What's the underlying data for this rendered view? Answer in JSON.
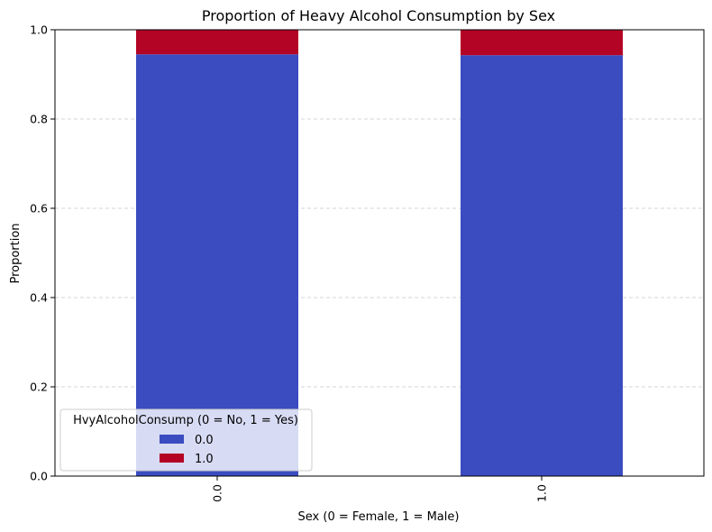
{
  "chart_data": {
    "type": "bar",
    "stacked": true,
    "title": "Proportion of Heavy Alcohol Consumption by Sex",
    "xlabel": "Sex (0 = Female, 1 = Male)",
    "ylabel": "Proportion",
    "categories": [
      "0.0",
      "1.0"
    ],
    "series": [
      {
        "name": "0.0",
        "color": "#3b4cc0",
        "values": [
          0.945,
          0.943
        ]
      },
      {
        "name": "1.0",
        "color": "#b40426",
        "values": [
          0.055,
          0.057
        ]
      }
    ],
    "ylim": [
      0,
      1
    ],
    "yticks": [
      0.0,
      0.2,
      0.4,
      0.6,
      0.8,
      1.0
    ],
    "ytick_labels": [
      "0.0",
      "0.2",
      "0.4",
      "0.6",
      "0.8",
      "1.0"
    ],
    "grid": {
      "y": true,
      "x": false,
      "style": "dashed"
    },
    "legend": {
      "title": "HvyAlcoholConsump (0 = No, 1 = Yes)",
      "placement": "lower-left"
    }
  }
}
